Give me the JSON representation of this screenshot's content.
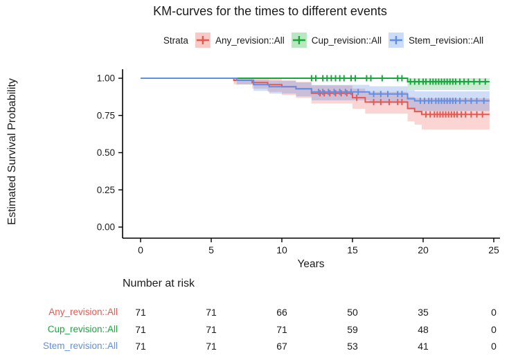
{
  "title": "KM-curves for the times to different events",
  "legend": {
    "label": "Strata",
    "items": [
      {
        "name": "Any_revision::All",
        "color": "#ea564e",
        "swatch_fill": "#f8cac6"
      },
      {
        "name": "Cup_revision::All",
        "color": "#17a63c",
        "swatch_fill": "#b9e7c0"
      },
      {
        "name": "Stem_revision::All",
        "color": "#5f8fe4",
        "swatch_fill": "#cadcf7"
      }
    ]
  },
  "chart_data": {
    "type": "line",
    "subtype": "kaplan-meier-step",
    "title": "KM-curves for the times to different events",
    "xlabel": "Years",
    "ylabel": "Estimated Survival Probability",
    "xticks": [
      0,
      5,
      10,
      15,
      20,
      25
    ],
    "yticks": [
      "0.00",
      "0.25",
      "0.50",
      "0.75",
      "1.00"
    ],
    "xlim": [
      0,
      25
    ],
    "ylim": [
      0,
      1
    ],
    "x_end": 24.7,
    "grid": false,
    "legend_position": "top",
    "series": [
      {
        "name": "Any_revision::All",
        "color": "#ea564e",
        "band_color": "rgba(234,86,78,0.25)",
        "steps": [
          [
            0,
            1.0
          ],
          [
            6.6,
            0.986
          ],
          [
            7.9,
            0.971
          ],
          [
            9.0,
            0.957
          ],
          [
            10.0,
            0.943
          ],
          [
            11.0,
            0.929
          ],
          [
            12.1,
            0.899
          ],
          [
            15.0,
            0.869
          ],
          [
            15.9,
            0.84
          ],
          [
            18.9,
            0.797
          ],
          [
            19.4,
            0.776
          ],
          [
            19.9,
            0.757
          ]
        ],
        "band": [
          [
            6.6,
            0.958,
            1.0
          ],
          [
            7.9,
            0.93,
            1.0
          ],
          [
            9.0,
            0.908,
            0.995
          ],
          [
            10.0,
            0.888,
            0.985
          ],
          [
            11.0,
            0.868,
            0.975
          ],
          [
            12.1,
            0.83,
            0.952
          ],
          [
            15.0,
            0.795,
            0.93
          ],
          [
            15.9,
            0.762,
            0.908
          ],
          [
            18.9,
            0.71,
            0.875
          ],
          [
            19.4,
            0.688,
            0.868
          ],
          [
            19.9,
            0.656,
            0.865
          ]
        ],
        "censor_times": [
          12.7,
          13.0,
          13.4,
          13.8,
          14.2,
          14.6,
          15.3,
          16.5,
          17.0,
          17.6,
          18.2,
          18.5,
          20.2,
          20.5,
          20.8,
          21.0,
          21.2,
          21.4,
          21.6,
          21.8,
          22.0,
          22.2,
          22.4,
          22.7,
          23.0,
          23.4,
          23.8,
          24.2
        ]
      },
      {
        "name": "Cup_revision::All",
        "color": "#17a63c",
        "band_color": "rgba(23,166,60,0.22)",
        "steps": [
          [
            0,
            1.0
          ],
          [
            18.9,
            0.977
          ]
        ],
        "band": [
          [
            18.9,
            0.921,
            1.0
          ]
        ],
        "censor_times": [
          12.1,
          12.4,
          12.9,
          13.2,
          13.5,
          13.8,
          14.1,
          14.4,
          14.9,
          15.2,
          16.0,
          16.3,
          17.1,
          18.2,
          18.5,
          19.1,
          19.4,
          19.7,
          20.0,
          20.2,
          20.5,
          20.7,
          20.9,
          21.1,
          21.3,
          21.5,
          21.7,
          21.9,
          22.1,
          22.3,
          22.6,
          22.9,
          23.2,
          23.6,
          24.0,
          24.4
        ]
      },
      {
        "name": "Stem_revision::All",
        "color": "#5f8fe4",
        "band_color": "rgba(95,143,228,0.30)",
        "steps": [
          [
            0,
            1.0
          ],
          [
            6.8,
            0.986
          ],
          [
            8.0,
            0.957
          ],
          [
            9.1,
            0.943
          ],
          [
            11.0,
            0.929
          ],
          [
            12.1,
            0.908
          ],
          [
            16.2,
            0.894
          ],
          [
            18.9,
            0.862
          ],
          [
            19.4,
            0.848
          ]
        ],
        "band": [
          [
            6.8,
            0.958,
            1.0
          ],
          [
            8.0,
            0.915,
            0.99
          ],
          [
            9.1,
            0.897,
            0.983
          ],
          [
            11.0,
            0.878,
            0.972
          ],
          [
            12.1,
            0.852,
            0.955
          ],
          [
            16.2,
            0.833,
            0.946
          ],
          [
            18.9,
            0.79,
            0.92
          ],
          [
            19.4,
            0.78,
            0.912
          ]
        ],
        "censor_times": [
          12.6,
          12.9,
          13.3,
          13.7,
          14.1,
          14.5,
          14.9,
          15.4,
          16.5,
          17.0,
          17.5,
          18.2,
          18.5,
          19.8,
          20.1,
          20.4,
          20.6,
          20.9,
          21.1,
          21.3,
          21.5,
          21.7,
          21.9,
          22.1,
          22.3,
          22.6,
          23.0,
          23.4,
          23.8,
          24.3
        ]
      }
    ]
  },
  "risk_table": {
    "title": "Number at risk",
    "columns": [
      0,
      5,
      10,
      15,
      20,
      25
    ],
    "rows": [
      {
        "label": "Any_revision::All",
        "color": "#ea564e",
        "values": [
          "71",
          "71",
          "66",
          "50",
          "35",
          "0"
        ]
      },
      {
        "label": "Cup_revision::All",
        "color": "#17a63c",
        "values": [
          "71",
          "71",
          "71",
          "59",
          "48",
          "0"
        ]
      },
      {
        "label": "Stem_revision::All",
        "color": "#5f8fe4",
        "values": [
          "71",
          "71",
          "67",
          "53",
          "41",
          "0"
        ]
      }
    ]
  }
}
